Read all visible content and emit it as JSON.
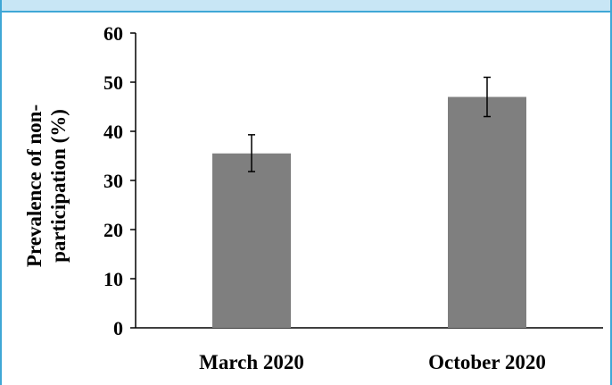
{
  "chart_data": {
    "type": "bar",
    "categories": [
      "March 2020",
      "October 2020"
    ],
    "values": [
      35.5,
      47.0
    ],
    "error": [
      {
        "low": 31.8,
        "high": 39.3
      },
      {
        "low": 43.0,
        "high": 51.0
      }
    ],
    "xlabel": "",
    "ylabel_lines": [
      "Prevalence of non-",
      "participation (%)"
    ],
    "ylim": [
      0,
      60
    ],
    "yticks": [
      "0",
      "10",
      "20",
      "30",
      "40",
      "50",
      "60"
    ],
    "grid": false,
    "colors": {
      "bar": "#7f7f7f",
      "axis": "#000000",
      "frame_accent": "#3fa7d6",
      "top_band": "#c8e6f5"
    }
  }
}
